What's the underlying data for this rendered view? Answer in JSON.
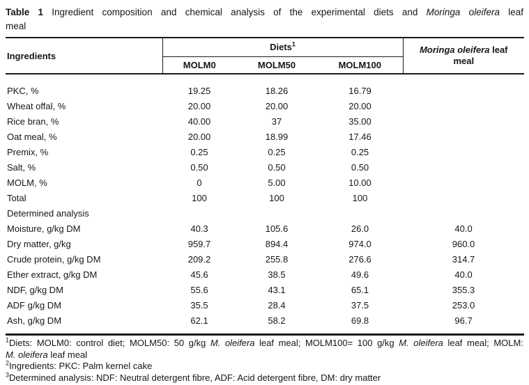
{
  "title": {
    "line1_segments": [
      {
        "text": "Table 1",
        "bold": true
      },
      {
        "text": " Ingredient composition and chemical analysis of the experimental diets and "
      },
      {
        "text": "Moringa oleifera",
        "italic": true
      },
      {
        "text": " leaf"
      }
    ],
    "line2": "meal"
  },
  "table": {
    "ingredients_header": "Ingredients",
    "diets_group_label": "Diets",
    "diets_group_sup": "1",
    "diet_columns": [
      "MOLM0",
      "MOLM50",
      "MOLM100"
    ],
    "moringa_header_segments": [
      {
        "text": "Moringa oleifera",
        "italic": true
      },
      {
        "text": " leaf meal"
      }
    ],
    "rows": [
      {
        "label": "PKC, %",
        "values": [
          "19.25",
          "18.26",
          "16.79",
          ""
        ]
      },
      {
        "label": "Wheat offal, %",
        "values": [
          "20.00",
          "20.00",
          "20.00",
          ""
        ]
      },
      {
        "label": "Rice bran, %",
        "values": [
          "40.00",
          "37",
          "35.00",
          ""
        ]
      },
      {
        "label": "Oat meal, %",
        "values": [
          "20.00",
          "18.99",
          "17.46",
          ""
        ]
      },
      {
        "label": "Premix, %",
        "values": [
          "0.25",
          "0.25",
          "0.25",
          ""
        ]
      },
      {
        "label": "Salt, %",
        "values": [
          "0.50",
          "0.50",
          "0.50",
          ""
        ]
      },
      {
        "label": "MOLM, %",
        "values": [
          "0",
          "5.00",
          "10.00",
          ""
        ]
      },
      {
        "label": "Total",
        "values": [
          "100",
          "100",
          "100",
          ""
        ]
      },
      {
        "label": "Determined analysis",
        "values": [
          "",
          "",
          "",
          ""
        ]
      },
      {
        "label": "Moisture, g/kg DM",
        "values": [
          "40.3",
          "105.6",
          "26.0",
          "40.0"
        ]
      },
      {
        "label": "Dry matter, g/kg",
        "values": [
          "959.7",
          "894.4",
          "974.0",
          "960.0"
        ]
      },
      {
        "label": "Crude protein, g/kg DM",
        "values": [
          "209.2",
          "255.8",
          "276.6",
          "314.7"
        ]
      },
      {
        "label": "Ether extract, g/kg DM",
        "values": [
          "45.6",
          "38.5",
          "49.6",
          "40.0"
        ]
      },
      {
        "label": "NDF, g/kg DM",
        "values": [
          "55.6",
          "43.1",
          "65.1",
          "355.3"
        ]
      },
      {
        "label": "ADF g/kg DM",
        "values": [
          "35.5",
          "28.4",
          "37.5",
          "253.0"
        ]
      },
      {
        "label": "Ash, g/kg DM",
        "values": [
          "62.1",
          "58.2",
          "69.8",
          "96.7"
        ]
      }
    ]
  },
  "footnotes": [
    {
      "sup": "1",
      "lines": [
        [
          {
            "text": "Diets: MOLM0: control diet; MOLM50: 50 g/kg "
          },
          {
            "text": "M. oleifera",
            "italic": true
          },
          {
            "text": " leaf meal; MOLM100= 100 g/kg "
          },
          {
            "text": "M. oleifera",
            "italic": true
          },
          {
            "text": " leaf meal; MOLM:"
          }
        ],
        [
          {
            "text": "M. oleifera",
            "italic": true
          },
          {
            "text": " leaf meal"
          }
        ]
      ]
    },
    {
      "sup": "2",
      "lines": [
        [
          {
            "text": "Ingredients: PKC: Palm kernel cake"
          }
        ]
      ]
    },
    {
      "sup": "3",
      "lines": [
        [
          {
            "text": "Determined analysis: NDF: Neutral detergent fibre, ADF: Acid detergent fibre, DM: dry matter"
          }
        ]
      ]
    }
  ],
  "colors": {
    "text": "#161616",
    "rule": "#1a1a1a",
    "background": "#ffffff"
  }
}
